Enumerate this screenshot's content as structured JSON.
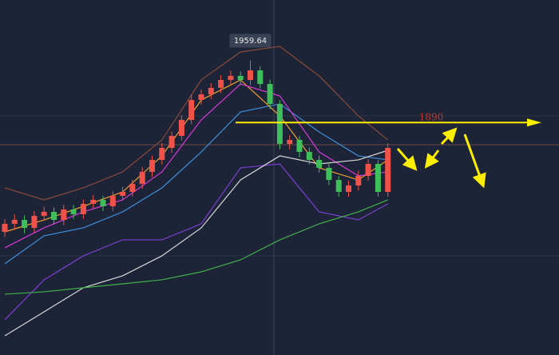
{
  "chart_data": {
    "type": "candlestick",
    "ylim": [
      1630,
      2027
    ],
    "up_color": "#f0524a",
    "down_color": "#3fbf5a",
    "open": [
      1767.7,
      1776.7,
      1781.1,
      1772.2,
      1785.6,
      1790.1,
      1781.1,
      1792.8,
      1787.4,
      1799.0,
      1803.5,
      1796.3,
      1808.0,
      1812.4,
      1821.4,
      1834.8,
      1848.2,
      1861.6,
      1875.0,
      1892.9,
      1915.2,
      1921.5,
      1928.7,
      1937.6,
      1942.1,
      1937.6,
      1948.3,
      1933.1,
      1910.8,
      1866.1,
      1870.5,
      1857.1,
      1848.2,
      1839.3,
      1825.8,
      1812.4,
      1819.6,
      1830.3,
      1843.7,
      1812.4
    ],
    "high": [
      1782,
      1787,
      1786,
      1791,
      1796,
      1795,
      1798,
      1798,
      1804,
      1809,
      1808,
      1813,
      1818,
      1826,
      1840,
      1853,
      1867,
      1880,
      1898,
      1921,
      1927,
      1934,
      1943,
      1948,
      1947,
      1959.64,
      1953,
      1938,
      1915,
      1876,
      1875,
      1862,
      1853,
      1844,
      1830,
      1825,
      1836,
      1849,
      1848,
      1867
    ],
    "low": [
      1762,
      1770,
      1766,
      1767,
      1780,
      1776,
      1775,
      1782,
      1782,
      1794,
      1791,
      1791,
      1803,
      1807,
      1816,
      1829,
      1843,
      1856,
      1870,
      1888,
      1910,
      1916,
      1923,
      1932,
      1932,
      1932,
      1928,
      1905,
      1860,
      1860,
      1851,
      1843,
      1834,
      1820,
      1807,
      1807,
      1814,
      1825,
      1807,
      1807
    ],
    "close": [
      1776.7,
      1781.1,
      1772.2,
      1785.6,
      1790.1,
      1781.1,
      1792.8,
      1787.4,
      1799.0,
      1803.5,
      1796.3,
      1808.0,
      1812.4,
      1821.4,
      1834.8,
      1848.2,
      1861.6,
      1875.0,
      1892.9,
      1915.2,
      1921.5,
      1928.7,
      1937.6,
      1942.1,
      1937.6,
      1948.3,
      1933.1,
      1910.8,
      1866.1,
      1870.5,
      1857.1,
      1848.2,
      1839.3,
      1825.8,
      1812.4,
      1819.6,
      1830.3,
      1843.7,
      1812.4,
      1861.6
    ],
    "line_x": [
      0,
      4,
      8,
      12,
      16,
      20,
      24,
      28,
      32,
      36,
      39
    ],
    "lines": [
      {
        "color": "#8a4a3a",
        "values": [
          1816.9,
          1803.5,
          1816.9,
          1834.8,
          1870.5,
          1937.6,
          1968.9,
          1975.1,
          1942.1,
          1897.4,
          1870.5
        ]
      },
      {
        "color": "#7a3fd0",
        "values": [
          1669.4,
          1714.1,
          1740.9,
          1758.8,
          1758.8,
          1776.7,
          1839.3,
          1843.7,
          1790.1,
          1781.1,
          1799.0
        ]
      },
      {
        "color": "#3f8fdc",
        "values": [
          1732.0,
          1763.3,
          1772.2,
          1790.1,
          1816.9,
          1857.1,
          1901.8,
          1910.8,
          1879.5,
          1852.7,
          1848.2
        ]
      },
      {
        "color": "#f0a030",
        "values": [
          1767.7,
          1781.1,
          1796.3,
          1812.4,
          1852.7,
          1915.2,
          1937.6,
          1897.4,
          1839.3,
          1825.8,
          1848.2
        ]
      },
      {
        "color": "#d63ad6",
        "values": [
          1749.9,
          1772.2,
          1790.1,
          1803.5,
          1834.8,
          1892.9,
          1933.1,
          1919.7,
          1857.1,
          1830.3,
          1834.8
        ]
      },
      {
        "color": "#d8d8d8",
        "values": [
          1651.5,
          1678.3,
          1705.2,
          1718.6,
          1740.9,
          1772.2,
          1825.8,
          1852.7,
          1843.7,
          1848.2,
          1858.9
        ]
      },
      {
        "color": "#3fb24a",
        "values": [
          1698.0,
          1700.7,
          1705.2,
          1709.6,
          1714.1,
          1723.0,
          1736.4,
          1758.8,
          1776.7,
          1790.1,
          1803.5
        ]
      }
    ],
    "peak_value": 1959.64,
    "level": 1890,
    "level_color": "#ffee00",
    "level_label_color": "#c0392b"
  }
}
